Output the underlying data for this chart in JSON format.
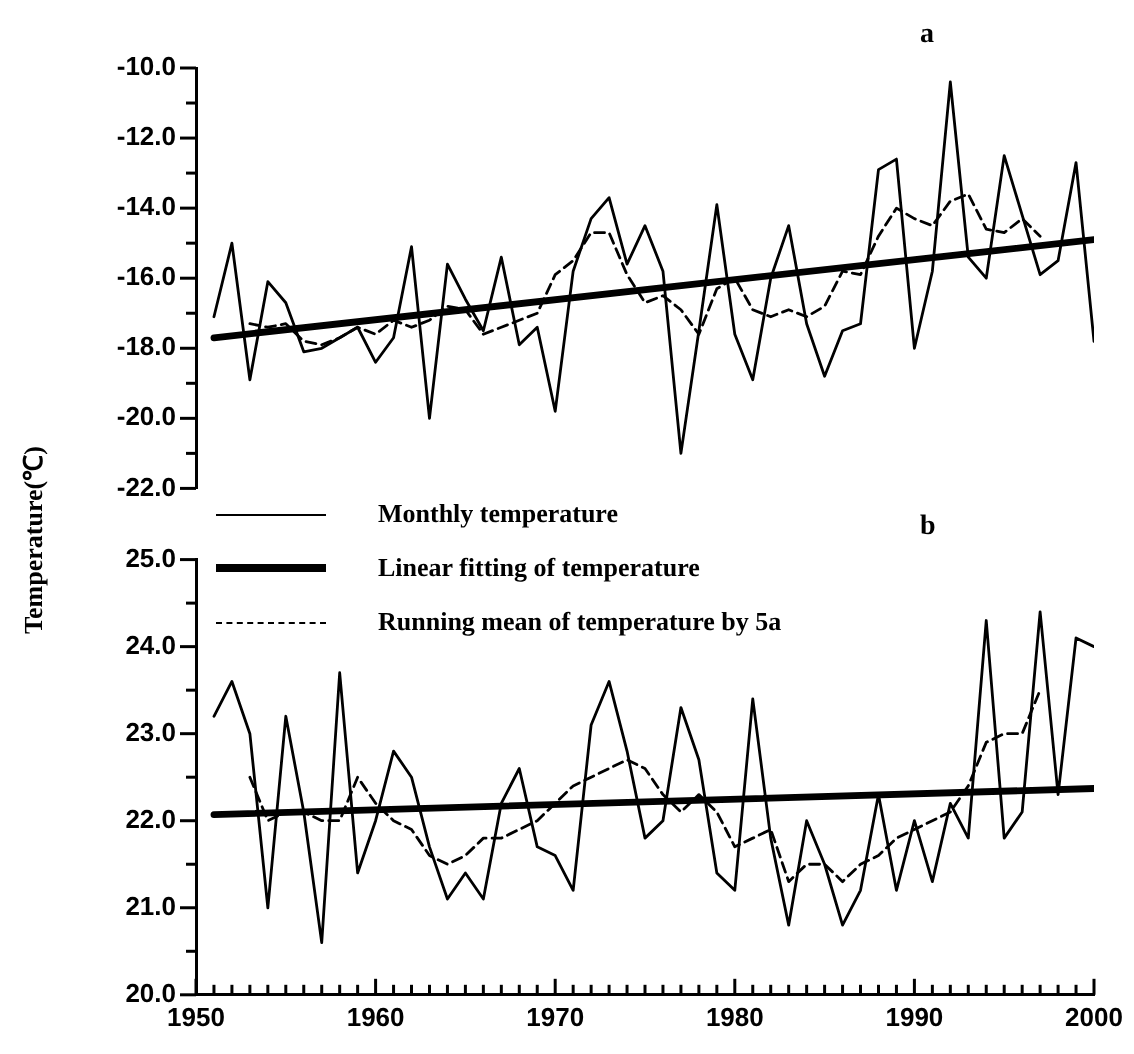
{
  "chart_data": [
    {
      "type": "line",
      "annotations": [
        "a"
      ],
      "xlim": [
        1950,
        2000
      ],
      "ylim": [
        -22,
        -10
      ],
      "tick_labels": "y",
      "yticks": [
        {
          "value": -22,
          "label": "-22.0"
        },
        {
          "value": -21,
          "label": null
        },
        {
          "value": -20,
          "label": "-20.0"
        },
        {
          "value": -19,
          "label": null
        },
        {
          "value": -18,
          "label": "-18.0"
        },
        {
          "value": -17,
          "label": null
        },
        {
          "value": -16,
          "label": "-16.0"
        },
        {
          "value": -15,
          "label": null
        },
        {
          "value": -14,
          "label": "-14.0"
        },
        {
          "value": -13,
          "label": null
        },
        {
          "value": -12,
          "label": "-12.0"
        },
        {
          "value": -11,
          "label": null
        },
        {
          "value": -10,
          "label": "-10.0"
        }
      ],
      "series": [
        {
          "color": "#000000",
          "line_style": "solid",
          "x": [
            1951,
            1952,
            1953,
            1954,
            1955,
            1956,
            1957,
            1958,
            1959,
            1960,
            1961,
            1962,
            1963,
            1964,
            1965,
            1966,
            1967,
            1968,
            1969,
            1970,
            1971,
            1972,
            1973,
            1974,
            1975,
            1976,
            1977,
            1978,
            1979,
            1980,
            1981,
            1982,
            1983,
            1984,
            1985,
            1986,
            1987,
            1988,
            1989,
            1990,
            1991,
            1992,
            1993,
            1994,
            1995,
            1996,
            1997,
            1998,
            1999,
            2000
          ],
          "values": [
            -17.1,
            -15.0,
            -18.9,
            -16.1,
            -16.7,
            -18.1,
            -18.0,
            -17.7,
            -17.4,
            -18.4,
            -17.7,
            -15.1,
            -20.0,
            -15.6,
            -16.6,
            -17.5,
            -15.4,
            -17.9,
            -17.4,
            -19.8,
            -15.8,
            -14.3,
            -13.7,
            -15.6,
            -14.5,
            -15.8,
            -21.0,
            -17.5,
            -13.9,
            -17.6,
            -18.9,
            -16.0,
            -14.5,
            -17.3,
            -18.8,
            -17.5,
            -17.3,
            -12.9,
            -12.6,
            -18.0,
            -15.8,
            -10.4,
            -15.4,
            -16.0,
            -12.5,
            -14.2,
            -15.9,
            -15.5,
            -12.7,
            -17.8
          ]
        },
        {
          "color": "#000000",
          "line_style": "solid",
          "x": [
            1951,
            2000
          ],
          "values": [
            -17.7,
            -14.9
          ]
        },
        {
          "color": "#000000",
          "line_style": "dashed",
          "x": [
            1953,
            1954,
            1955,
            1956,
            1957,
            1958,
            1959,
            1960,
            1961,
            1962,
            1963,
            1964,
            1965,
            1966,
            1967,
            1968,
            1969,
            1970,
            1971,
            1972,
            1973,
            1974,
            1975,
            1976,
            1977,
            1978,
            1979,
            1980,
            1981,
            1982,
            1983,
            1984,
            1985,
            1986,
            1987,
            1988,
            1989,
            1990,
            1991,
            1992,
            1993,
            1994,
            1995,
            1996,
            1997
          ],
          "values": [
            -17.3,
            -17.4,
            -17.3,
            -17.8,
            -17.9,
            -17.7,
            -17.4,
            -17.6,
            -17.2,
            -17.4,
            -17.2,
            -16.8,
            -16.9,
            -17.6,
            -17.4,
            -17.2,
            -17.0,
            -15.9,
            -15.5,
            -14.7,
            -14.7,
            -15.9,
            -16.7,
            -16.5,
            -16.9,
            -17.6,
            -16.3,
            -16.0,
            -16.9,
            -17.1,
            -16.9,
            -17.1,
            -16.8,
            -15.8,
            -15.9,
            -14.8,
            -14.0,
            -14.3,
            -14.5,
            -13.8,
            -13.6,
            -14.6,
            -14.7,
            -14.3,
            -14.8
          ]
        }
      ]
    },
    {
      "type": "line",
      "ylabel": "Temperature(℃)",
      "annotations": [
        "b"
      ],
      "legend": "top",
      "xlim": [
        1950,
        2000
      ],
      "ylim": [
        20,
        25
      ],
      "xticks": [
        1950,
        {
          "value": 1951,
          "label": null
        },
        {
          "value": 1952,
          "label": null
        },
        {
          "value": 1953,
          "label": null
        },
        {
          "value": 1954,
          "label": null
        },
        {
          "value": 1955,
          "label": null
        },
        {
          "value": 1956,
          "label": null
        },
        {
          "value": 1957,
          "label": null
        },
        {
          "value": 1958,
          "label": null
        },
        {
          "value": 1959,
          "label": null
        },
        1960,
        {
          "value": 1961,
          "label": null
        },
        {
          "value": 1962,
          "label": null
        },
        {
          "value": 1963,
          "label": null
        },
        {
          "value": 1964,
          "label": null
        },
        {
          "value": 1965,
          "label": null
        },
        {
          "value": 1966,
          "label": null
        },
        {
          "value": 1967,
          "label": null
        },
        {
          "value": 1968,
          "label": null
        },
        {
          "value": 1969,
          "label": null
        },
        1970,
        {
          "value": 1971,
          "label": null
        },
        {
          "value": 1972,
          "label": null
        },
        {
          "value": 1973,
          "label": null
        },
        {
          "value": 1974,
          "label": null
        },
        {
          "value": 1975,
          "label": null
        },
        {
          "value": 1976,
          "label": null
        },
        {
          "value": 1977,
          "label": null
        },
        {
          "value": 1978,
          "label": null
        },
        {
          "value": 1979,
          "label": null
        },
        1980,
        {
          "value": 1981,
          "label": null
        },
        {
          "value": 1982,
          "label": null
        },
        {
          "value": 1983,
          "label": null
        },
        {
          "value": 1984,
          "label": null
        },
        {
          "value": 1985,
          "label": null
        },
        {
          "value": 1986,
          "label": null
        },
        {
          "value": 1987,
          "label": null
        },
        {
          "value": 1988,
          "label": null
        },
        {
          "value": 1989,
          "label": null
        },
        1990,
        {
          "value": 1991,
          "label": null
        },
        {
          "value": 1992,
          "label": null
        },
        {
          "value": 1993,
          "label": null
        },
        {
          "value": 1994,
          "label": null
        },
        {
          "value": 1995,
          "label": null
        },
        {
          "value": 1996,
          "label": null
        },
        {
          "value": 1997,
          "label": null
        },
        {
          "value": 1998,
          "label": null
        },
        {
          "value": 1999,
          "label": null
        },
        2000
      ],
      "yticks": [
        {
          "value": 20,
          "label": "20.0"
        },
        {
          "value": 20.5,
          "label": null
        },
        {
          "value": 21,
          "label": "21.0"
        },
        {
          "value": 21.5,
          "label": null
        },
        {
          "value": 22,
          "label": "22.0"
        },
        {
          "value": 22.5,
          "label": null
        },
        {
          "value": 23,
          "label": "23.0"
        },
        {
          "value": 23.5,
          "label": null
        },
        {
          "value": 24,
          "label": "24.0"
        },
        {
          "value": 24.5,
          "label": null
        },
        {
          "value": 25,
          "label": "25.0"
        }
      ],
      "series": [
        {
          "name": "Monthly temperature",
          "color": "#000000",
          "line_style": "solid",
          "x": [
            1951,
            1952,
            1953,
            1954,
            1955,
            1956,
            1957,
            1958,
            1959,
            1960,
            1961,
            1962,
            1963,
            1964,
            1965,
            1966,
            1967,
            1968,
            1969,
            1970,
            1971,
            1972,
            1973,
            1974,
            1975,
            1976,
            1977,
            1978,
            1979,
            1980,
            1981,
            1982,
            1983,
            1984,
            1985,
            1986,
            1987,
            1988,
            1989,
            1990,
            1991,
            1992,
            1993,
            1994,
            1995,
            1996,
            1997,
            1998,
            1999,
            2000
          ],
          "values": [
            23.2,
            23.6,
            23.0,
            21.0,
            23.2,
            22.1,
            20.6,
            23.7,
            21.4,
            22.0,
            22.8,
            22.5,
            21.7,
            21.1,
            21.4,
            21.1,
            22.2,
            22.6,
            21.7,
            21.6,
            21.2,
            23.1,
            23.6,
            22.8,
            21.8,
            22.0,
            23.3,
            22.7,
            21.4,
            21.2,
            23.4,
            21.8,
            20.8,
            22.0,
            21.5,
            20.8,
            21.2,
            22.3,
            21.2,
            22.0,
            21.3,
            22.2,
            21.8,
            24.3,
            21.8,
            22.1,
            24.4,
            22.3,
            24.1,
            24.0
          ]
        },
        {
          "name": "Linear fitting of temperature",
          "color": "#000000",
          "line_style": "solid",
          "x": [
            1951,
            2000
          ],
          "values": [
            22.07,
            22.37
          ]
        },
        {
          "name": "Running mean of temperature by 5a",
          "color": "#000000",
          "line_style": "dashed",
          "x": [
            1953,
            1954,
            1955,
            1956,
            1957,
            1958,
            1959,
            1960,
            1961,
            1962,
            1963,
            1964,
            1965,
            1966,
            1967,
            1968,
            1969,
            1970,
            1971,
            1972,
            1973,
            1974,
            1975,
            1976,
            1977,
            1978,
            1979,
            1980,
            1981,
            1982,
            1983,
            1984,
            1985,
            1986,
            1987,
            1988,
            1989,
            1990,
            1991,
            1992,
            1993,
            1994,
            1995,
            1996,
            1997
          ],
          "values": [
            22.5,
            22.0,
            22.1,
            22.1,
            22.0,
            22.0,
            22.5,
            22.2,
            22.0,
            21.9,
            21.6,
            21.5,
            21.6,
            21.8,
            21.8,
            21.9,
            22.0,
            22.2,
            22.4,
            22.5,
            22.6,
            22.7,
            22.6,
            22.3,
            22.1,
            22.3,
            22.1,
            21.7,
            21.8,
            21.9,
            21.3,
            21.5,
            21.5,
            21.3,
            21.5,
            21.6,
            21.8,
            21.9,
            22.0,
            22.1,
            22.4,
            22.9,
            23.0,
            23.0,
            23.5
          ]
        }
      ]
    }
  ]
}
